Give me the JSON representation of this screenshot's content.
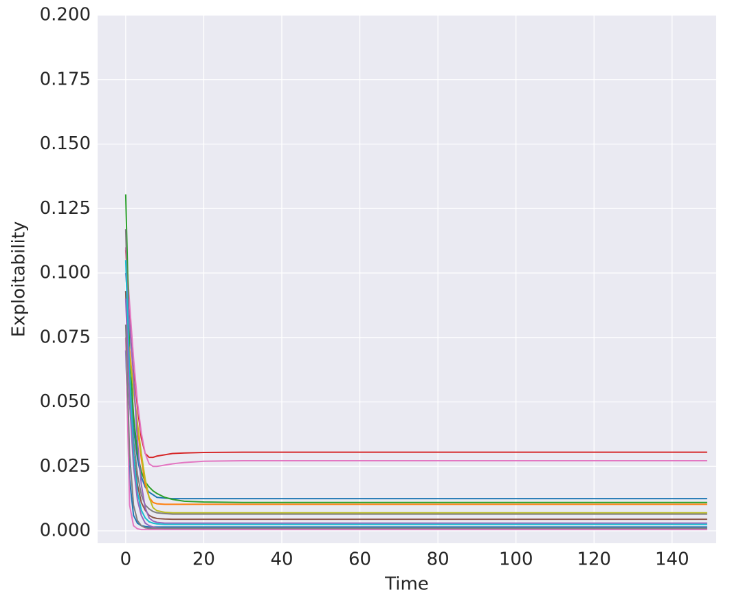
{
  "chart_data": {
    "type": "line",
    "xlabel": "Time",
    "ylabel": "Exploitability",
    "x": [
      0,
      1,
      2,
      3,
      4,
      5,
      6,
      7,
      8,
      10,
      12,
      15,
      20,
      30,
      50,
      100,
      149
    ],
    "xlim": [
      -7.2,
      151.3
    ],
    "xticks": [
      0,
      20,
      40,
      60,
      80,
      100,
      120,
      140
    ],
    "ylim": [
      -0.0048,
      0.2
    ],
    "yticks": [
      {
        "value": 0,
        "label": "0.000"
      },
      {
        "value": 0.025,
        "label": "0.025"
      },
      {
        "value": 0.05,
        "label": "0.050"
      },
      {
        "value": 0.075,
        "label": "0.075"
      },
      {
        "value": 0.1,
        "label": "0.100"
      },
      {
        "value": 0.125,
        "label": "0.125"
      },
      {
        "value": 0.15,
        "label": "0.150"
      },
      {
        "value": 0.175,
        "label": "0.175"
      },
      {
        "value": 0.2,
        "label": "0.200"
      }
    ],
    "grid": true,
    "background": "#eaeaf2",
    "series": [
      {
        "color": "#d62728",
        "values": [
          0.109,
          0.085,
          0.065,
          0.048,
          0.036,
          0.03,
          0.0285,
          0.0285,
          0.029,
          0.0295,
          0.03,
          0.0302,
          0.0304,
          0.0305,
          0.0305,
          0.0305,
          0.0305
        ]
      },
      {
        "color": "#e377c2",
        "values": [
          0.11,
          0.088,
          0.067,
          0.05,
          0.038,
          0.03,
          0.026,
          0.025,
          0.025,
          0.0255,
          0.026,
          0.0265,
          0.027,
          0.0272,
          0.0272,
          0.0272,
          0.0272
        ]
      },
      {
        "color": "#1f77b4",
        "values": [
          0.093,
          0.06,
          0.04,
          0.028,
          0.021,
          0.017,
          0.015,
          0.014,
          0.013,
          0.0127,
          0.0125,
          0.0125,
          0.0125,
          0.0125,
          0.0125,
          0.0125,
          0.0125
        ]
      },
      {
        "color": "#2ca02c",
        "values": [
          0.1305,
          0.07,
          0.045,
          0.03,
          0.023,
          0.019,
          0.017,
          0.0155,
          0.0145,
          0.013,
          0.0122,
          0.0115,
          0.0112,
          0.011,
          0.011,
          0.011,
          0.011
        ]
      },
      {
        "color": "#ff7f0e",
        "values": [
          0.08,
          0.07,
          0.055,
          0.04,
          0.028,
          0.018,
          0.013,
          0.011,
          0.0105,
          0.0103,
          0.0103,
          0.0103,
          0.0103,
          0.0103,
          0.0103,
          0.0103,
          0.0103
        ]
      },
      {
        "color": "#bcbd22",
        "values": [
          0.08,
          0.068,
          0.055,
          0.042,
          0.03,
          0.02,
          0.013,
          0.009,
          0.0078,
          0.0072,
          0.007,
          0.007,
          0.007,
          0.007,
          0.007,
          0.007,
          0.007
        ]
      },
      {
        "color": "#7f7f7f",
        "values": [
          0.117,
          0.06,
          0.035,
          0.022,
          0.014,
          0.01,
          0.0085,
          0.0075,
          0.007,
          0.0067,
          0.0065,
          0.0065,
          0.0065,
          0.0065,
          0.0065,
          0.0065,
          0.0065
        ]
      },
      {
        "color": "#8c564b",
        "values": [
          0.093,
          0.05,
          0.03,
          0.018,
          0.011,
          0.008,
          0.006,
          0.0052,
          0.0048,
          0.0046,
          0.0045,
          0.0045,
          0.0045,
          0.0045,
          0.0045,
          0.0045,
          0.0045
        ]
      },
      {
        "color": "#9467bd",
        "values": [
          0.1,
          0.08,
          0.06,
          0.035,
          0.018,
          0.009,
          0.005,
          0.0038,
          0.0033,
          0.003,
          0.003,
          0.003,
          0.003,
          0.003,
          0.003,
          0.003,
          0.003
        ]
      },
      {
        "color": "#17becf",
        "values": [
          0.105,
          0.06,
          0.03,
          0.015,
          0.008,
          0.005,
          0.0035,
          0.003,
          0.0027,
          0.0025,
          0.0025,
          0.0025,
          0.0025,
          0.0025,
          0.0025,
          0.0025,
          0.0025
        ]
      },
      {
        "color": "#1f77b4",
        "values": [
          0.07,
          0.02,
          0.006,
          0.003,
          0.002,
          0.0017,
          0.0015,
          0.0015,
          0.0015,
          0.0015,
          0.0015,
          0.0015,
          0.0015,
          0.0015,
          0.0015,
          0.0015,
          0.0015
        ]
      },
      {
        "color": "#e377c2",
        "values": [
          0.075,
          0.01,
          0.002,
          0.0008,
          0.0005,
          0.0005,
          0.0005,
          0.0005,
          0.0005,
          0.0005,
          0.0005,
          0.0005,
          0.0005,
          0.0005,
          0.0005,
          0.0005,
          0.0005
        ]
      },
      {
        "color": "#9467bd",
        "values": [
          0.09,
          0.05,
          0.025,
          0.012,
          0.006,
          0.003,
          0.002,
          0.0015,
          0.0012,
          0.001,
          0.001,
          0.001,
          0.001,
          0.001,
          0.001,
          0.001,
          0.001
        ]
      },
      {
        "color": "#7f7f7f",
        "values": [
          0.08,
          0.03,
          0.01,
          0.004,
          0.002,
          0.0012,
          0.001,
          0.001,
          0.001,
          0.001,
          0.001,
          0.001,
          0.001,
          0.001,
          0.001,
          0.001,
          0.001
        ]
      }
    ]
  }
}
